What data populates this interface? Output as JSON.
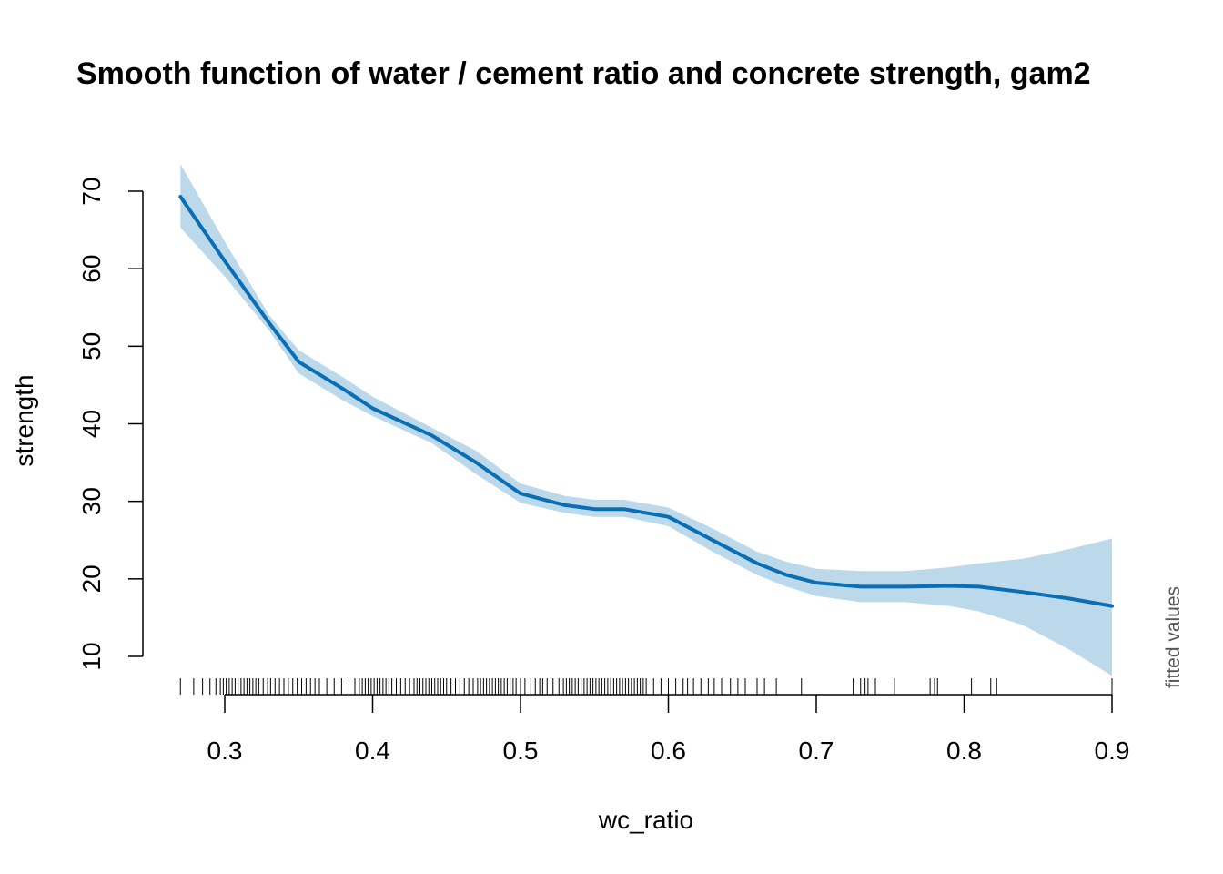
{
  "chart_data": {
    "type": "line",
    "title": "Smooth function of water / cement ratio and concrete strength, gam2",
    "xlabel": "wc_ratio",
    "ylabel": "strength",
    "side_label": "fitted values",
    "xlim": [
      0.27,
      0.9
    ],
    "ylim": [
      10,
      70
    ],
    "x_ticks": [
      0.3,
      0.4,
      0.5,
      0.6,
      0.7,
      0.8,
      0.9
    ],
    "x_tick_labels": [
      "0.3",
      "0.4",
      "0.5",
      "0.6",
      "0.7",
      "0.8",
      "0.9"
    ],
    "y_ticks": [
      10,
      20,
      30,
      40,
      50,
      60,
      70
    ],
    "y_tick_labels": [
      "10",
      "20",
      "30",
      "40",
      "50",
      "60",
      "70"
    ],
    "grid": false,
    "colors": {
      "line": "#0a6eb4",
      "band": "#bcd9ec",
      "rug": "#000000",
      "axis": "#000000"
    },
    "series": [
      {
        "x": [
          0.27,
          0.3,
          0.33,
          0.35,
          0.38,
          0.4,
          0.44,
          0.47,
          0.5,
          0.53,
          0.55,
          0.57,
          0.6,
          0.63,
          0.66,
          0.68,
          0.7,
          0.73,
          0.76,
          0.79,
          0.81,
          0.84,
          0.87,
          0.9
        ],
        "y": [
          69.3,
          61.0,
          53.0,
          48.0,
          44.5,
          42.0,
          38.5,
          35.0,
          31.0,
          29.5,
          29.0,
          29.0,
          28.0,
          25.0,
          22.0,
          20.5,
          19.5,
          19.0,
          19.0,
          19.1,
          19.0,
          18.3,
          17.5,
          16.5
        ],
        "lower": [
          65.3,
          59.0,
          52.0,
          46.5,
          43.0,
          41.0,
          37.5,
          33.5,
          29.8,
          28.5,
          28.0,
          28.0,
          26.8,
          23.5,
          20.5,
          19.0,
          17.8,
          17.0,
          17.0,
          16.5,
          15.8,
          14.0,
          11.0,
          7.5
        ],
        "upper": [
          73.5,
          63.5,
          54.0,
          49.5,
          46.0,
          43.5,
          39.5,
          36.5,
          32.3,
          30.7,
          30.2,
          30.2,
          29.2,
          26.5,
          23.5,
          22.2,
          21.3,
          21.0,
          21.0,
          21.5,
          22.0,
          22.6,
          23.8,
          25.2
        ]
      }
    ],
    "rug_x": [
      0.27,
      0.279,
      0.285,
      0.29,
      0.294,
      0.297,
      0.299,
      0.301,
      0.303,
      0.305,
      0.307,
      0.309,
      0.311,
      0.313,
      0.315,
      0.317,
      0.319,
      0.321,
      0.323,
      0.326,
      0.329,
      0.331,
      0.334,
      0.337,
      0.34,
      0.343,
      0.346,
      0.349,
      0.352,
      0.355,
      0.358,
      0.361,
      0.364,
      0.369,
      0.374,
      0.379,
      0.384,
      0.388,
      0.391,
      0.393,
      0.395,
      0.397,
      0.399,
      0.401,
      0.403,
      0.405,
      0.407,
      0.409,
      0.411,
      0.413,
      0.416,
      0.419,
      0.422,
      0.425,
      0.428,
      0.43,
      0.432,
      0.434,
      0.436,
      0.438,
      0.44,
      0.442,
      0.444,
      0.446,
      0.448,
      0.45,
      0.453,
      0.456,
      0.459,
      0.462,
      0.465,
      0.468,
      0.471,
      0.473,
      0.475,
      0.477,
      0.479,
      0.481,
      0.483,
      0.485,
      0.487,
      0.489,
      0.491,
      0.493,
      0.495,
      0.497,
      0.5,
      0.503,
      0.507,
      0.51,
      0.513,
      0.515,
      0.518,
      0.522,
      0.526,
      0.529,
      0.531,
      0.533,
      0.535,
      0.537,
      0.539,
      0.541,
      0.543,
      0.545,
      0.547,
      0.549,
      0.551,
      0.553,
      0.555,
      0.557,
      0.559,
      0.561,
      0.563,
      0.565,
      0.567,
      0.569,
      0.571,
      0.573,
      0.575,
      0.577,
      0.579,
      0.581,
      0.583,
      0.585,
      0.59,
      0.595,
      0.6,
      0.605,
      0.61,
      0.613,
      0.617,
      0.622,
      0.627,
      0.631,
      0.636,
      0.642,
      0.647,
      0.652,
      0.66,
      0.665,
      0.673,
      0.69,
      0.725,
      0.73,
      0.733,
      0.735,
      0.74,
      0.753,
      0.777,
      0.78,
      0.782,
      0.805,
      0.818,
      0.822,
      0.9
    ]
  }
}
